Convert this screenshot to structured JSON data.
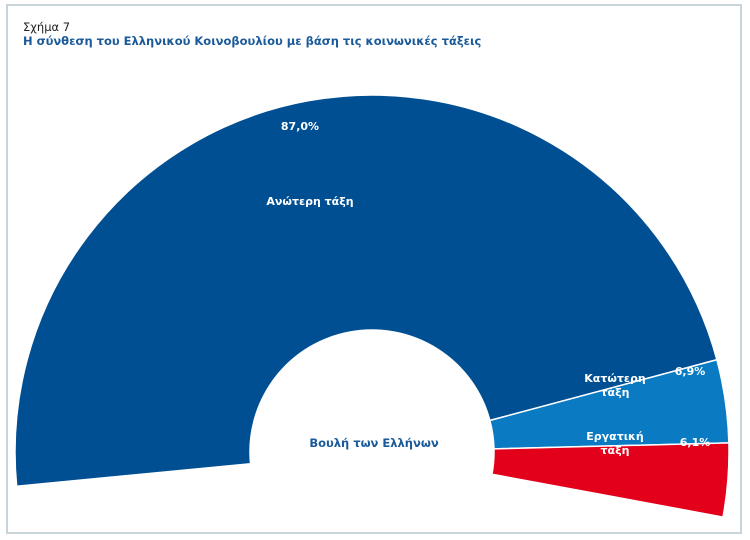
{
  "figure_label": "Σχήμα 7",
  "chart_data": {
    "type": "pie",
    "variant": "half-donut",
    "title": "Η σύνθεση του Ελληνικού Κοινοβουλίου με βάση τις κοινωνικές τάξεις",
    "center_label": "Βουλή των Ελλήνων",
    "slices": [
      {
        "label_lines": [
          "Ανώτερη τάξη"
        ],
        "value": 87.0,
        "value_label": "87,0%",
        "color": "#004f92"
      },
      {
        "label_lines": [
          "Κατώτερη",
          "τάξη"
        ],
        "value": 6.9,
        "value_label": "6,9%",
        "color": "#0a7ac3"
      },
      {
        "label_lines": [
          "Εργατική",
          "τάξη"
        ],
        "value": 6.1,
        "value_label": "6,1%",
        "color": "#e2001a"
      }
    ]
  }
}
